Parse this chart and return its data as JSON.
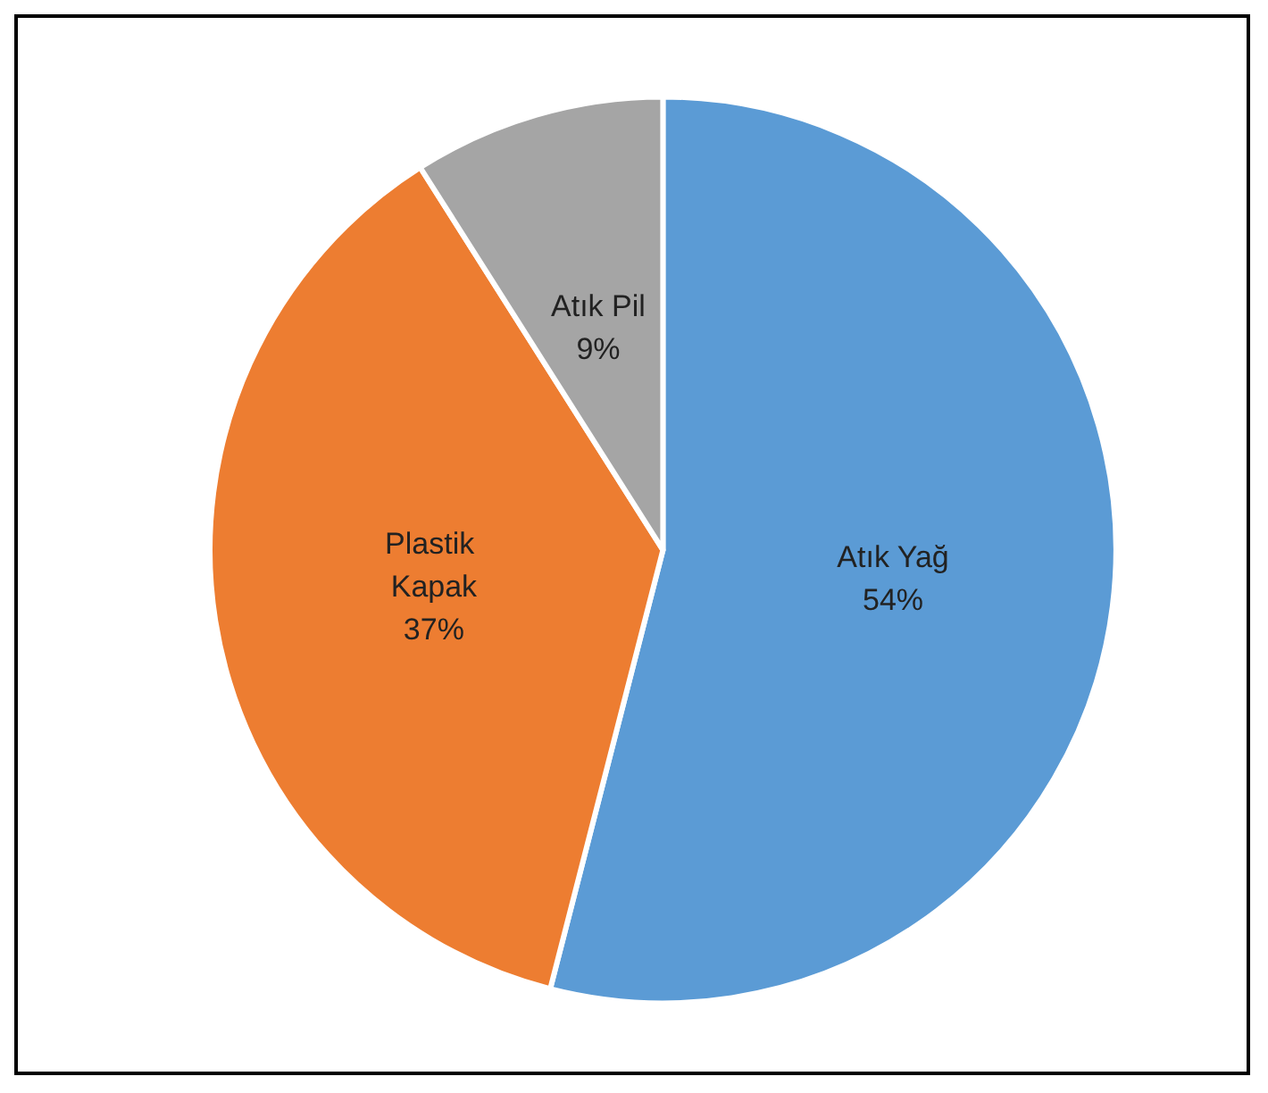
{
  "chart_data": {
    "type": "pie",
    "categories": [
      "Atık Yağ",
      "Plastik Kapak",
      "Atık Pil"
    ],
    "values": [
      54,
      37,
      9
    ],
    "colors": [
      "#5b9bd5",
      "#ed7d31",
      "#a5a5a5"
    ],
    "value_labels": [
      "54%",
      "37%",
      "9%"
    ]
  }
}
